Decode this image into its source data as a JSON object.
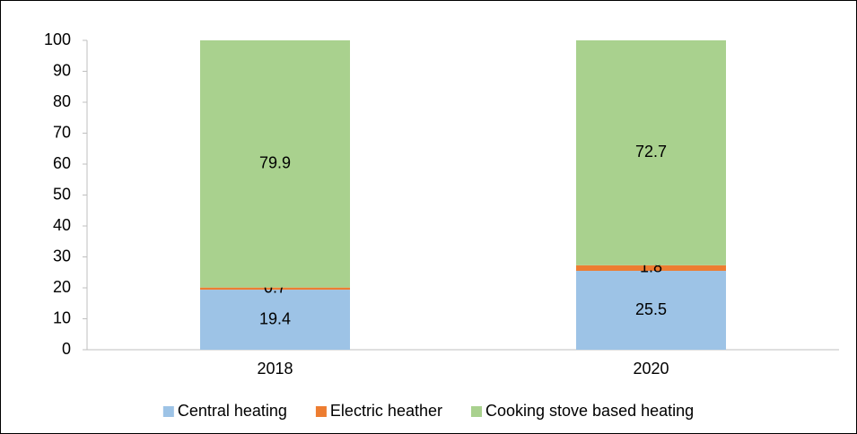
{
  "chart_data": {
    "type": "stacked-bar",
    "categories": [
      "2018",
      "2020"
    ],
    "series": [
      {
        "name": "Central heating",
        "color": "#9dc3e6",
        "values": [
          19.4,
          25.5
        ]
      },
      {
        "name": "Electric heather",
        "color": "#ed7d31",
        "values": [
          0.7,
          1.8
        ]
      },
      {
        "name": "Cooking stove based heating",
        "color": "#a9d18e",
        "values": [
          79.9,
          72.7
        ]
      }
    ],
    "ylim": [
      0,
      100
    ],
    "yticks": [
      0,
      10,
      20,
      30,
      40,
      50,
      60,
      70,
      80,
      90,
      100
    ],
    "legend": "bottom"
  }
}
